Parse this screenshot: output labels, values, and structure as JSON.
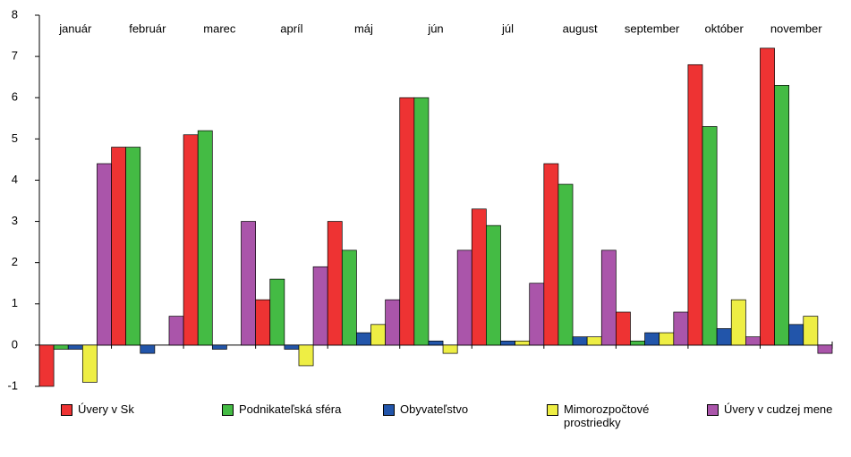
{
  "chart_data": {
    "type": "bar",
    "categories": [
      "január",
      "február",
      "marec",
      "apríl",
      "máj",
      "jún",
      "júl",
      "august",
      "september",
      "október",
      "november"
    ],
    "series": [
      {
        "name": "Úvery v Sk",
        "color": "#ee3333",
        "values": [
          -1.0,
          4.8,
          5.1,
          1.1,
          3.0,
          6.0,
          3.3,
          4.4,
          0.8,
          6.8,
          7.2
        ]
      },
      {
        "name": "Podnikateľská sféra",
        "color": "#44bb44",
        "values": [
          -0.1,
          4.8,
          5.2,
          1.6,
          2.3,
          6.0,
          2.9,
          3.9,
          0.1,
          5.3,
          6.3
        ]
      },
      {
        "name": "Obyvateľstvo",
        "color": "#2255aa",
        "values": [
          -0.1,
          -0.2,
          -0.1,
          -0.1,
          0.3,
          0.1,
          0.1,
          0.2,
          0.3,
          0.4,
          0.5
        ]
      },
      {
        "name": "Mimorozpočtové prostriedky",
        "color": "#eeee44",
        "values": [
          -0.9,
          0,
          0,
          -0.5,
          0.5,
          -0.2,
          0.1,
          0.2,
          0.3,
          1.1,
          0.7
        ]
      },
      {
        "name": "Úvery v cudzej mene",
        "color": "#aa55aa",
        "values": [
          4.4,
          0.7,
          3.0,
          1.9,
          1.1,
          2.3,
          1.5,
          2.3,
          0.8,
          0.2,
          -0.2
        ]
      }
    ],
    "ylim": [
      -1,
      8
    ],
    "yticks": [
      -1,
      0,
      1,
      2,
      3,
      4,
      5,
      6,
      7,
      8
    ],
    "grid": false,
    "legend": "bottom"
  }
}
